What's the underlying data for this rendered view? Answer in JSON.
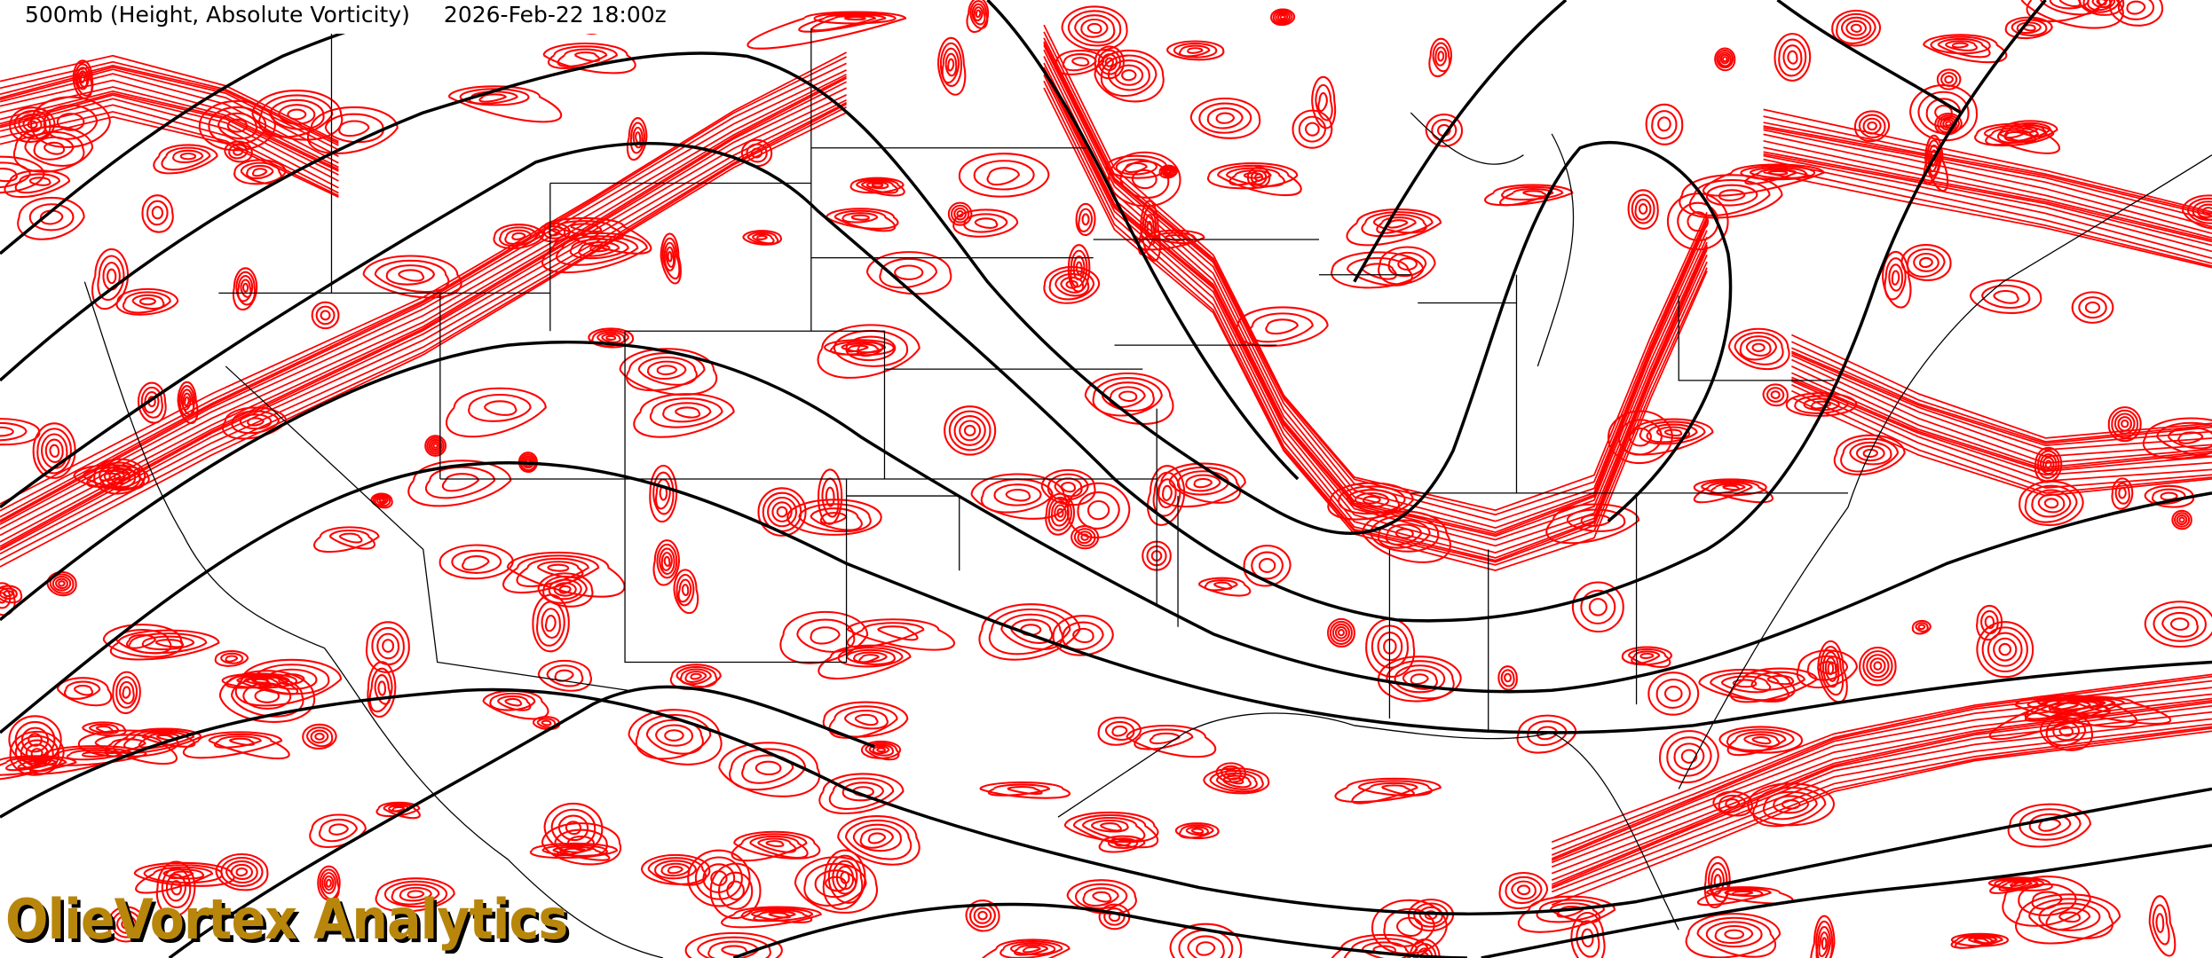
{
  "header": {
    "product": "500mb (Height, Absolute Vorticity)",
    "valid_time": "2026-Feb-22 18:00z"
  },
  "branding": {
    "logo_text": "OlieVortex Analytics"
  },
  "map": {
    "fields": [
      "500mb geopotential height",
      "absolute vorticity"
    ],
    "colors": {
      "height_contours": "#000000",
      "vorticity_contours": "#ff0000",
      "borders": "#000000",
      "logo": "#b8860b",
      "background": "#ffffff"
    }
  }
}
